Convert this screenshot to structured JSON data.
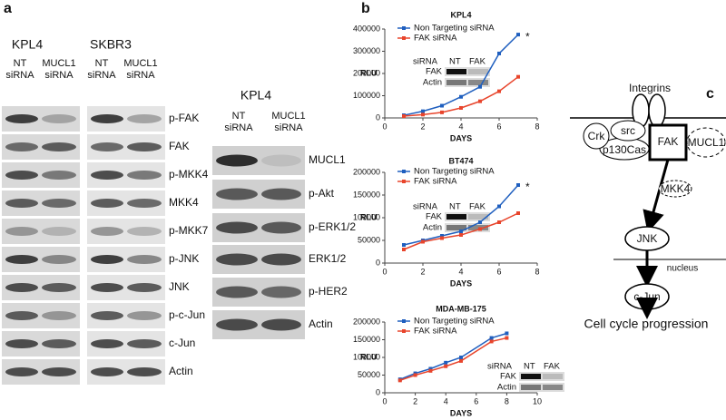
{
  "panel_a": {
    "label": "a",
    "left": {
      "cell_lines": [
        "KPL4",
        "SKBR3"
      ],
      "lanes": [
        [
          "NT",
          "siRNA"
        ],
        [
          "MUCL1",
          "siRNA"
        ],
        [
          "NT",
          "siRNA"
        ],
        [
          "MUCL1",
          "siRNA"
        ]
      ],
      "rows": [
        "p-FAK",
        "FAK",
        "p-MKK4",
        "MKK4",
        "p-MKK7",
        "p-JNK",
        "JNK",
        "p-c-Jun",
        "c-Jun",
        "Actin"
      ]
    },
    "right": {
      "cell_line": "KPL4",
      "lanes": [
        [
          "NT",
          "siRNA"
        ],
        [
          "MUCL1",
          "siRNA"
        ]
      ],
      "rows": [
        "MUCL1",
        "p-Akt",
        "p-ERK1/2",
        "ERK1/2",
        "p-HER2",
        "Actin"
      ]
    }
  },
  "panel_b_label": "b",
  "chart_data": [
    {
      "type": "line",
      "title": "KPL4",
      "xlabel": "DAYS",
      "ylabel": "RLU",
      "legend": "upper left",
      "annotation": "*",
      "x": [
        1,
        2,
        3,
        4,
        5,
        6,
        7
      ],
      "xlim": [
        0,
        8
      ],
      "xticks": [
        0,
        2,
        4,
        6,
        8
      ],
      "ylim": [
        0,
        400000
      ],
      "yticks": [
        0,
        100000,
        200000,
        300000,
        400000
      ],
      "inset": {
        "header": [
          "siRNA",
          "NT",
          "FAK"
        ],
        "rows": [
          "FAK",
          "Actin"
        ]
      },
      "series": [
        {
          "name": "Non Targeting siRNA",
          "color": "#1f5fbf",
          "values": [
            12000,
            30000,
            55000,
            95000,
            140000,
            290000,
            375000
          ]
        },
        {
          "name": "FAK siRNA",
          "color": "#e8452c",
          "values": [
            8000,
            15000,
            25000,
            45000,
            75000,
            120000,
            185000
          ]
        }
      ]
    },
    {
      "type": "line",
      "title": "BT474",
      "xlabel": "DAYS",
      "ylabel": "RLU",
      "legend": "upper left",
      "annotation": "*",
      "x": [
        1,
        2,
        3,
        4,
        5,
        6,
        7
      ],
      "xlim": [
        0,
        8
      ],
      "xticks": [
        0,
        2,
        4,
        6,
        8
      ],
      "ylim": [
        0,
        200000
      ],
      "yticks": [
        0,
        50000,
        100000,
        150000,
        200000
      ],
      "inset": {
        "header": [
          "siRNA",
          "NT",
          "FAK"
        ],
        "rows": [
          "FAK",
          "Actin"
        ]
      },
      "series": [
        {
          "name": "Non Targeting siRNA",
          "color": "#1f5fbf",
          "values": [
            40000,
            50000,
            60000,
            70000,
            90000,
            125000,
            172000
          ]
        },
        {
          "name": "FAK siRNA",
          "color": "#e8452c",
          "values": [
            30000,
            47000,
            55000,
            62000,
            75000,
            90000,
            110000
          ]
        }
      ]
    },
    {
      "type": "line",
      "title": "MDA-MB-175",
      "xlabel": "DAYS",
      "ylabel": "RLU",
      "legend": "upper left",
      "x": [
        1,
        2,
        3,
        4,
        5,
        7,
        8
      ],
      "xlim": [
        0,
        10
      ],
      "xticks": [
        0,
        2,
        4,
        6,
        8,
        10
      ],
      "ylim": [
        0,
        200000
      ],
      "yticks": [
        0,
        50000,
        100000,
        150000,
        200000
      ],
      "inset": {
        "header": [
          "siRNA",
          "NT",
          "FAK"
        ],
        "rows": [
          "FAK",
          "Actin"
        ]
      },
      "series": [
        {
          "name": "Non Targeting siRNA",
          "color": "#1f5fbf",
          "values": [
            38000,
            55000,
            68000,
            85000,
            100000,
            155000,
            168000
          ]
        },
        {
          "name": "FAK siRNA",
          "color": "#e8452c",
          "values": [
            35000,
            50000,
            62000,
            75000,
            90000,
            145000,
            155000
          ]
        }
      ]
    }
  ],
  "panel_c": {
    "label": "c",
    "integrins": "Integrins",
    "crk": "Crk",
    "src": "src",
    "p130cas": "p130Cas",
    "fak": "FAK",
    "mucl1": "MUCL1",
    "mkk4": "MKK4",
    "jnk": "JNK",
    "nucleus": "nucleus",
    "cjun": "c-Jun",
    "outcome": "Cell cycle progression"
  }
}
